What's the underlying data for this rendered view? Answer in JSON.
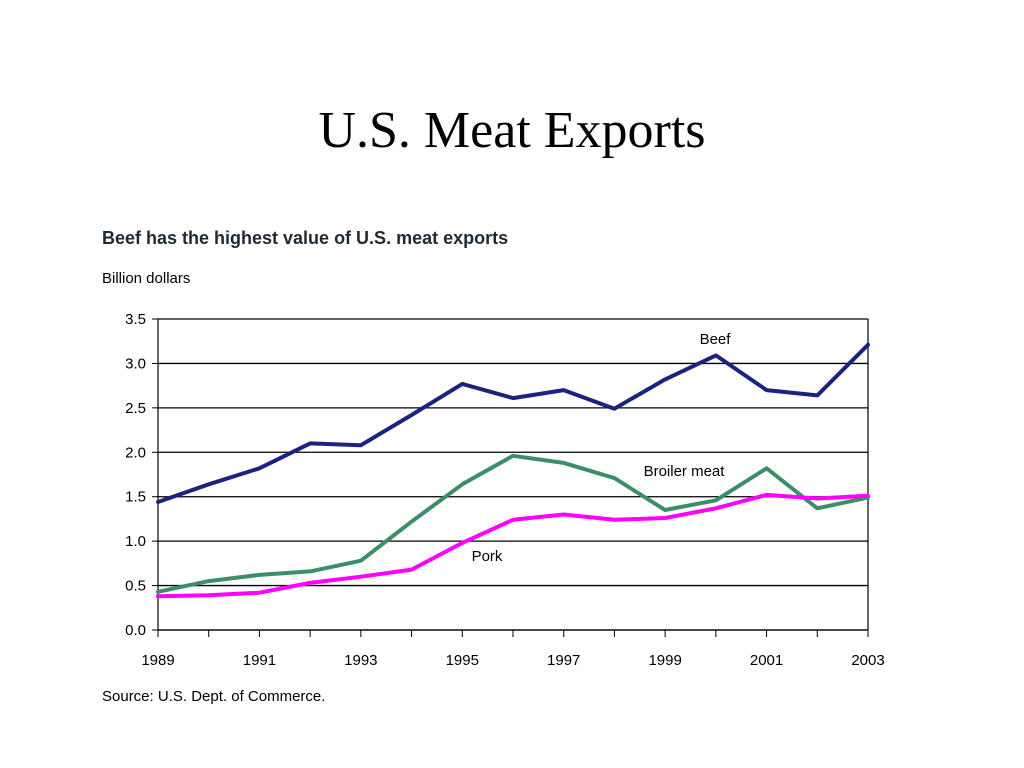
{
  "slide": {
    "title": "U.S. Meat Exports"
  },
  "chart_data": {
    "type": "line",
    "title": "Beef has the highest value of U.S. meat exports",
    "ylabel": "Billion dollars",
    "xlabel": "",
    "source": "Source: U.S. Dept. of Commerce.",
    "x": [
      1989,
      1990,
      1991,
      1992,
      1993,
      1994,
      1995,
      1996,
      1997,
      1998,
      1999,
      2000,
      2001,
      2002,
      2003
    ],
    "x_ticks": [
      "1989",
      "1991",
      "1993",
      "1995",
      "1997",
      "1999",
      "2001",
      "2003"
    ],
    "y_ticks": [
      "0.0",
      "0.5",
      "1.0",
      "1.5",
      "2.0",
      "2.5",
      "3.0",
      "3.5"
    ],
    "ylim": [
      0,
      3.5
    ],
    "grid": true,
    "series": [
      {
        "name": "Beef",
        "color": "#1a237e",
        "values": [
          1.44,
          1.64,
          1.82,
          2.1,
          2.08,
          2.42,
          2.77,
          2.61,
          2.7,
          2.49,
          2.82,
          3.09,
          2.7,
          2.64,
          3.21
        ]
      },
      {
        "name": "Broiler meat",
        "color": "#3a8f68",
        "values": [
          0.43,
          0.55,
          0.62,
          0.66,
          0.78,
          1.22,
          1.64,
          1.96,
          1.88,
          1.71,
          1.35,
          1.46,
          1.82,
          1.37,
          1.49
        ]
      },
      {
        "name": "Pork",
        "color": "#ff00ff",
        "values": [
          0.38,
          0.39,
          0.42,
          0.53,
          0.6,
          0.68,
          0.98,
          1.24,
          1.3,
          1.24,
          1.26,
          1.37,
          1.52,
          1.48,
          1.51
        ]
      }
    ]
  }
}
